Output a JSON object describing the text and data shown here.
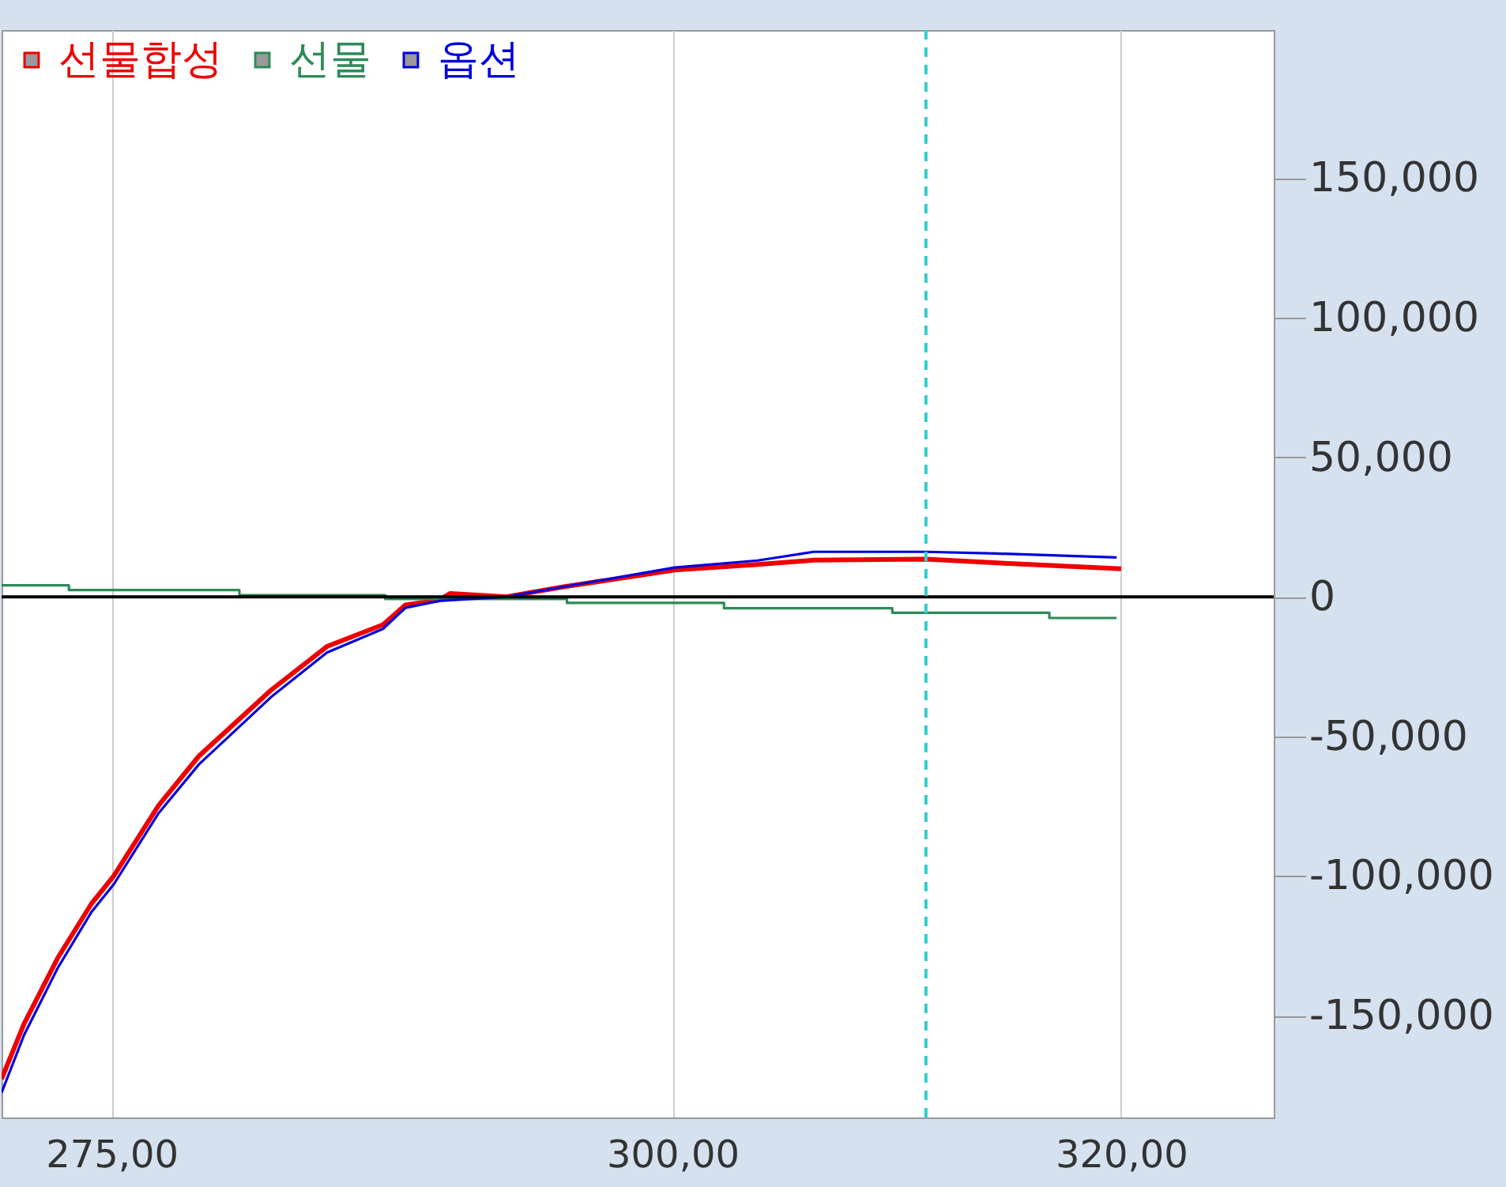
{
  "chart_data": {
    "type": "line",
    "xlim": [
      270.1,
      326.8
    ],
    "xticks": [
      {
        "value": 275,
        "label": "275,00"
      },
      {
        "value": 300,
        "label": "300,00"
      },
      {
        "value": 320,
        "label": "320,00"
      }
    ],
    "ylim": [
      -186500,
      203000
    ],
    "yticks": [
      {
        "value": -150000,
        "label": "-150,000"
      },
      {
        "value": -100000,
        "label": "-100,000"
      },
      {
        "value": -50000,
        "label": "-50,000"
      },
      0,
      {
        "value": 50000,
        "label": "50,000"
      },
      {
        "value": 100000,
        "label": "100,000"
      },
      {
        "value": 150000,
        "label": "150,000"
      }
    ],
    "grid": "x",
    "legend": "top left",
    "marker": "none",
    "ref_lines": [
      {
        "axis": "y",
        "value": 0,
        "color": "#000000",
        "line_style": "solid"
      },
      {
        "axis": "x",
        "value": 311.3,
        "color": "#33cccc",
        "line_style": "dashed"
      }
    ],
    "series": [
      {
        "name": "선물합성",
        "color": "#ee0000",
        "x": [
          270.1,
          271.1,
          272.6,
          274.1,
          275.1,
          277.1,
          278.9,
          280.1,
          282.1,
          284.6,
          287.1,
          288.1,
          289.6,
          290.1,
          292.6,
          295.1,
          300.1,
          303.8,
          306.3,
          311.3,
          315.0,
          320.0
        ],
        "values": [
          -172700,
          -153000,
          -129400,
          -110000,
          -100000,
          -74700,
          -57000,
          -48200,
          -33500,
          -17800,
          -10000,
          -2900,
          -1200,
          1200,
          0,
          3500,
          9600,
          11600,
          13100,
          13500,
          11900,
          10000
        ]
      },
      {
        "name": "선물",
        "type": "step",
        "color": "#2e8b57",
        "x": [
          270.1,
          273.1,
          280.7,
          287.2,
          295.3,
          302.3,
          309.8,
          316.8,
          319.8
        ],
        "values": [
          4100,
          2400,
          600,
          -800,
          -2200,
          -4100,
          -5700,
          -7600,
          -7600
        ]
      },
      {
        "name": "옵션",
        "color": "#0000dd",
        "x": [
          270.1,
          271.1,
          272.6,
          274.1,
          275.1,
          277.1,
          278.9,
          280.1,
          282.1,
          284.6,
          287.1,
          288.1,
          289.6,
          292.6,
          295.1,
          300.1,
          303.8,
          306.3,
          311.3,
          314.4,
          319.8
        ],
        "values": [
          -177600,
          -157000,
          -133000,
          -113000,
          -103000,
          -77500,
          -60000,
          -51000,
          -36000,
          -20000,
          -11500,
          -4000,
          -1500,
          0,
          3500,
          10500,
          13000,
          16100,
          16100,
          15500,
          14100
        ]
      }
    ]
  }
}
